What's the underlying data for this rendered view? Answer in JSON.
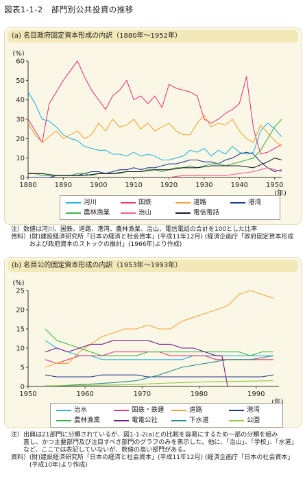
{
  "figure_title": "図表1-1-2　部門別公共投資の推移",
  "chart_data": [
    {
      "id": "a",
      "type": "line",
      "title": "(a)  名目政府固定資本形成の内訳（1880年〜1952年）",
      "ylabel": "(%)",
      "xlabel": "(年)",
      "xlim": [
        1880,
        1952
      ],
      "ylim": [
        0,
        60
      ],
      "xticks": [
        1880,
        1890,
        1900,
        1910,
        1920,
        1930,
        1940,
        1950
      ],
      "yticks": [
        0,
        10,
        20,
        30,
        40,
        50,
        60
      ],
      "legend": [
        "河川",
        "国鉄",
        "道路",
        "港湾",
        "農林漁業",
        "治山",
        "電信電話"
      ],
      "series": [
        {
          "name": "河川",
          "color": "#28b4e0",
          "x": [
            1880,
            1882,
            1884,
            1886,
            1888,
            1890,
            1892,
            1894,
            1896,
            1898,
            1900,
            1902,
            1904,
            1906,
            1908,
            1910,
            1912,
            1914,
            1916,
            1918,
            1920,
            1922,
            1924,
            1926,
            1928,
            1930,
            1932,
            1934,
            1936,
            1938,
            1940,
            1942,
            1944,
            1946,
            1948,
            1950,
            1952
          ],
          "values": [
            44,
            38,
            30,
            29,
            26,
            22,
            20,
            19,
            16,
            15,
            14,
            14,
            12,
            12,
            11,
            13,
            11,
            12,
            11,
            9,
            9,
            10,
            11,
            14,
            13,
            15,
            11,
            14,
            12,
            16,
            13,
            12,
            13,
            24,
            28,
            25,
            21
          ]
        },
        {
          "name": "国鉄",
          "color": "#e8387e",
          "x": [
            1880,
            1882,
            1884,
            1886,
            1888,
            1890,
            1892,
            1894,
            1896,
            1898,
            1900,
            1902,
            1904,
            1906,
            1908,
            1910,
            1912,
            1914,
            1916,
            1918,
            1920,
            1922,
            1924,
            1926,
            1928,
            1930,
            1932,
            1934,
            1936,
            1938,
            1940,
            1942,
            1944,
            1946,
            1948,
            1950,
            1952
          ],
          "values": [
            30,
            24,
            18,
            38,
            44,
            50,
            55,
            60,
            52,
            45,
            40,
            35,
            42,
            45,
            50,
            40,
            42,
            38,
            42,
            36,
            48,
            46,
            45,
            44,
            42,
            30,
            28,
            30,
            33,
            35,
            38,
            52,
            25,
            12,
            13,
            15,
            17
          ]
        },
        {
          "name": "道路",
          "color": "#f4a434",
          "x": [
            1880,
            1882,
            1884,
            1886,
            1888,
            1890,
            1892,
            1894,
            1896,
            1898,
            1900,
            1902,
            1904,
            1906,
            1908,
            1910,
            1912,
            1914,
            1916,
            1918,
            1920,
            1922,
            1924,
            1926,
            1928,
            1930,
            1932,
            1934,
            1936,
            1938,
            1940,
            1942,
            1944,
            1946,
            1948,
            1950,
            1952
          ],
          "values": [
            28,
            22,
            18,
            21,
            24,
            20,
            22,
            24,
            20,
            22,
            28,
            24,
            30,
            26,
            27,
            30,
            25,
            28,
            24,
            26,
            28,
            24,
            22,
            22,
            28,
            32,
            26,
            28,
            27,
            30,
            24,
            20,
            18,
            27,
            23,
            19,
            16
          ]
        },
        {
          "name": "港湾",
          "color": "#1e3a8c",
          "x": [
            1880,
            1882,
            1884,
            1886,
            1888,
            1890,
            1892,
            1894,
            1896,
            1898,
            1900,
            1902,
            1904,
            1906,
            1908,
            1910,
            1912,
            1914,
            1916,
            1918,
            1920,
            1922,
            1924,
            1926,
            1928,
            1930,
            1932,
            1934,
            1936,
            1938,
            1940,
            1942,
            1944,
            1946,
            1948,
            1950,
            1952
          ],
          "values": [
            0,
            0,
            0,
            0,
            1,
            1,
            1,
            1,
            2,
            3,
            3,
            2,
            3,
            4,
            4,
            5,
            4,
            5,
            5,
            6,
            7,
            7,
            8,
            9,
            9,
            8,
            8,
            7,
            9,
            10,
            12,
            13,
            12,
            8,
            5,
            3,
            4
          ]
        },
        {
          "name": "農林漁業",
          "color": "#3cb44a",
          "x": [
            1880,
            1882,
            1884,
            1886,
            1888,
            1890,
            1892,
            1894,
            1896,
            1898,
            1900,
            1902,
            1904,
            1906,
            1908,
            1910,
            1912,
            1914,
            1916,
            1918,
            1920,
            1922,
            1924,
            1926,
            1928,
            1930,
            1932,
            1934,
            1936,
            1938,
            1940,
            1942,
            1944,
            1946,
            1948,
            1950,
            1952
          ],
          "values": [
            2,
            2,
            1,
            1,
            1,
            1,
            1,
            2,
            2,
            1,
            2,
            2,
            2,
            2,
            3,
            3,
            3,
            4,
            4,
            3,
            4,
            5,
            5,
            6,
            5,
            6,
            7,
            7,
            6,
            7,
            8,
            9,
            10,
            14,
            20,
            26,
            30
          ]
        },
        {
          "name": "治山",
          "color": "#f25a8c",
          "x": [
            1920,
            1924,
            1928,
            1932,
            1936,
            1940,
            1944,
            1948,
            1950,
            1952
          ],
          "values": [
            0,
            1,
            1,
            1,
            1,
            2,
            3,
            5,
            4,
            3
          ]
        },
        {
          "name": "電信電話",
          "color": "#1a1a2e",
          "x": [
            1880,
            1884,
            1888,
            1892,
            1896,
            1900,
            1904,
            1908,
            1912,
            1916,
            1920,
            1924,
            1928,
            1932,
            1936,
            1940,
            1944,
            1948,
            1950,
            1952
          ],
          "values": [
            2,
            2,
            1,
            1,
            1,
            2,
            2,
            3,
            3,
            4,
            4,
            5,
            5,
            6,
            6,
            6,
            5,
            8,
            10,
            9
          ]
        }
      ]
    },
    {
      "id": "b",
      "type": "line",
      "title": "(b)  名目公的固定資本形成の内訳（1953年〜1993年）",
      "ylabel": "(%)",
      "xlabel": "(年)",
      "xlim": [
        1950,
        1994
      ],
      "ylim": [
        0,
        25
      ],
      "xticks": [
        1950,
        1960,
        1970,
        1980,
        1990
      ],
      "yticks": [
        0,
        5,
        10,
        15,
        20,
        25
      ],
      "legend": [
        "治水",
        "国鉄・鉄建",
        "道路",
        "港湾",
        "農林漁業",
        "電電公社",
        "下水道",
        "公園"
      ],
      "series": [
        {
          "name": "治水",
          "color": "#28b4e0",
          "x": [
            1953,
            1955,
            1957,
            1959,
            1961,
            1963,
            1965,
            1967,
            1969,
            1971,
            1973,
            1975,
            1977,
            1979,
            1981,
            1983,
            1985,
            1987,
            1989,
            1991,
            1993
          ],
          "values": [
            12,
            10,
            9,
            8,
            8,
            7,
            7,
            7,
            7,
            7,
            7,
            7,
            7,
            8,
            8,
            8,
            8,
            8,
            8,
            8,
            8
          ]
        },
        {
          "name": "国鉄・鉄建",
          "color": "#e8387e",
          "x": [
            1953,
            1955,
            1957,
            1959,
            1961,
            1963,
            1965,
            1967,
            1969,
            1971,
            1973,
            1975,
            1977,
            1979,
            1981,
            1983,
            1985,
            1987,
            1989,
            1991,
            1993
          ],
          "values": [
            7,
            6,
            7,
            8,
            8,
            8,
            9,
            9,
            9,
            9,
            9,
            8,
            8,
            8,
            8,
            7,
            7,
            7,
            7,
            7,
            7
          ]
        },
        {
          "name": "道路",
          "color": "#f4a434",
          "x": [
            1953,
            1955,
            1957,
            1959,
            1961,
            1963,
            1965,
            1967,
            1969,
            1971,
            1973,
            1975,
            1977,
            1979,
            1981,
            1983,
            1985,
            1987,
            1989,
            1991,
            1993
          ],
          "values": [
            5,
            6,
            6,
            9,
            11,
            13,
            14,
            15,
            15,
            16,
            15,
            15,
            17,
            18,
            19,
            20,
            21,
            24,
            25,
            24,
            23
          ]
        },
        {
          "name": "港湾",
          "color": "#1e3a8c",
          "x": [
            1953,
            1955,
            1957,
            1959,
            1961,
            1963,
            1965,
            1967,
            1969,
            1971,
            1973,
            1975,
            1977,
            1979,
            1981,
            1983,
            1985,
            1987,
            1989,
            1991,
            1993
          ],
          "values": [
            3,
            2.5,
            2.5,
            2.5,
            2.5,
            3,
            3,
            3,
            3,
            2.5,
            2.5,
            2.5,
            2.5,
            2.5,
            2.5,
            2.5,
            2.5,
            2.5,
            2.5,
            2.5,
            3
          ]
        },
        {
          "name": "農林漁業",
          "color": "#3cb44a",
          "x": [
            1953,
            1955,
            1957,
            1959,
            1961,
            1963,
            1965,
            1967,
            1969,
            1971,
            1973,
            1975,
            1977,
            1979,
            1981,
            1983,
            1985,
            1987,
            1989,
            1991,
            1993
          ],
          "values": [
            15,
            12,
            11,
            10,
            9,
            8,
            8,
            8,
            8,
            9,
            9,
            9,
            9,
            9,
            9,
            9,
            9,
            9,
            8,
            9,
            9
          ]
        },
        {
          "name": "電電公社",
          "color": "#6a1a8c",
          "x": [
            1953,
            1955,
            1957,
            1959,
            1961,
            1963,
            1965,
            1967,
            1969,
            1971,
            1973,
            1975,
            1977,
            1979,
            1981,
            1983,
            1984,
            1985
          ],
          "values": [
            9,
            10,
            9,
            10,
            11,
            11,
            12,
            12,
            12,
            12,
            11,
            11,
            10,
            10,
            9,
            8,
            8,
            0
          ]
        },
        {
          "name": "下水道",
          "color": "#2a8c8c",
          "x": [
            1953,
            1957,
            1961,
            1965,
            1969,
            1973,
            1977,
            1981,
            1985,
            1989,
            1993
          ],
          "values": [
            0,
            0.3,
            0.6,
            1,
            1.5,
            3,
            5,
            6,
            7,
            7,
            8
          ]
        },
        {
          "name": "公園",
          "color": "#8cc83c",
          "x": [
            1953,
            1957,
            1961,
            1965,
            1969,
            1973,
            1977,
            1981,
            1985,
            1989,
            1993
          ],
          "values": [
            0.2,
            0.2,
            0.3,
            0.4,
            0.5,
            0.8,
            1,
            1.2,
            1.3,
            1.4,
            1.5
          ]
        }
      ]
    }
  ],
  "notes_a": [
    "注）数値は河川、国鉄、道路、港湾、農林漁業、治山、電信電話の合計を100とした比率",
    "資料）(財)建設経済研究所「日本の経済と社会資本」(平成11年12月) (経済企画庁「政府固定資本形成",
    "　　　および政府資本のストックの推計」(1966年)より作成)"
  ],
  "notes_b": [
    "注）出典は21部門に分類されているが、図1-1-2(a)との比較を容易にするため一部の分類を組み",
    "　　直し、かつ主要部門及び注目すべき部門のグラフのみを表示した。他に、「治山」、「学校」、「水道」",
    "　　など、ここでは表記していないが、数値の高い部門がある。",
    "資料）(財)建設経済研究所「日本の経済と社会資本」(平成11年12月) (経済企画庁「日本の社会資本」",
    "　　　(平成10年)より作成)"
  ]
}
